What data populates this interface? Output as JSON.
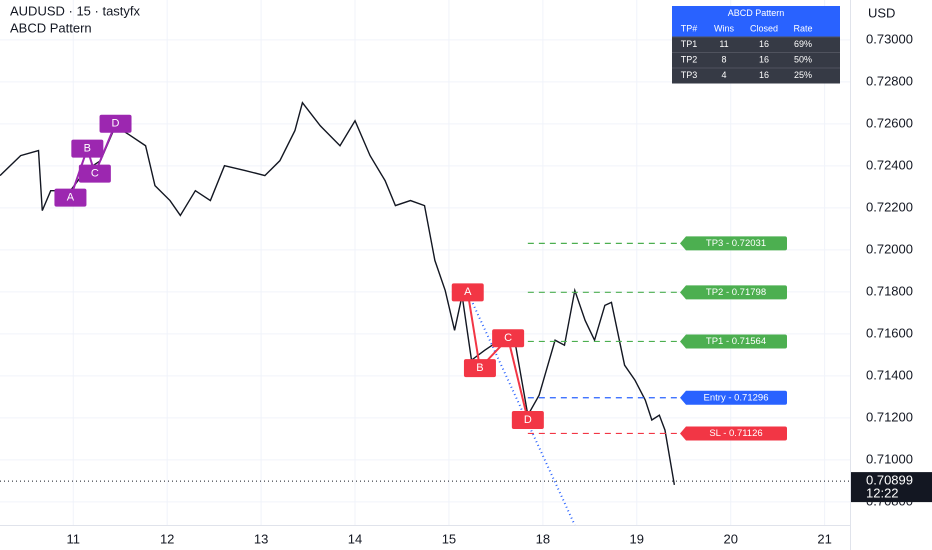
{
  "chart_data": {
    "type": "line",
    "title": "AUDUSD · 15 · tastyfx",
    "subtitle": "ABCD Pattern",
    "y_axis_label": "USD",
    "x": [
      -0.78,
      -0.56,
      -0.37,
      -0.33,
      -0.24,
      -0.03,
      0.13,
      0.29,
      0.45,
      0.61,
      0.77,
      0.87,
      1.03,
      1.14,
      1.3,
      1.46,
      1.61,
      1.83,
      2.04,
      2.2,
      2.36,
      2.44,
      2.63,
      2.84,
      3.0,
      3.16,
      3.32,
      3.43,
      3.59,
      3.74,
      3.85,
      3.96,
      4.06,
      4.14,
      4.24,
      4.38,
      4.54,
      4.7,
      4.84,
      4.96,
      5.13,
      5.23,
      5.34,
      5.45,
      5.55,
      5.66,
      5.73,
      5.87,
      5.98,
      6.09,
      6.16,
      6.24,
      6.3,
      6.4
    ],
    "series": [
      {
        "color": "#131722",
        "values": [
          0.72354,
          0.72449,
          0.72473,
          0.72187,
          0.72282,
          0.72282,
          0.72378,
          0.72425,
          0.72591,
          0.72544,
          0.72496,
          0.72306,
          0.72235,
          0.72164,
          0.72282,
          0.72235,
          0.72401,
          0.72378,
          0.72354,
          0.72425,
          0.72568,
          0.72701,
          0.72591,
          0.72496,
          0.72615,
          0.72449,
          0.7233,
          0.72211,
          0.72235,
          0.72211,
          0.7195,
          0.71807,
          0.71617,
          0.71783,
          0.71475,
          0.71522,
          0.7157,
          0.7157,
          0.71213,
          0.71308,
          0.7157,
          0.71546,
          0.71807,
          0.71664,
          0.7157,
          0.71736,
          0.7175,
          0.71451,
          0.7138,
          0.71285,
          0.7119,
          0.71213,
          0.71142,
          0.70881
        ]
      }
    ],
    "xlim": [
      -0.78,
      8.27
    ],
    "xticks": [
      {
        "value": 0,
        "label": "11"
      },
      {
        "value": 1,
        "label": "12"
      },
      {
        "value": 2,
        "label": "13"
      },
      {
        "value": 3,
        "label": "14"
      },
      {
        "value": 4,
        "label": "15"
      },
      {
        "value": 5,
        "label": "18"
      },
      {
        "value": 6,
        "label": "19"
      },
      {
        "value": 7,
        "label": "20"
      },
      {
        "value": 8,
        "label": "21"
      }
    ],
    "ylim": [
      0.7069,
      0.7319
    ],
    "yticks": [
      {
        "value": 0.708,
        "label": "0.70800"
      },
      {
        "value": 0.71,
        "label": "0.71000"
      },
      {
        "value": 0.712,
        "label": "0.71200"
      },
      {
        "value": 0.714,
        "label": "0.71400"
      },
      {
        "value": 0.716,
        "label": "0.71600"
      },
      {
        "value": 0.718,
        "label": "0.71800"
      },
      {
        "value": 0.72,
        "label": "0.72000"
      },
      {
        "value": 0.722,
        "label": "0.72200"
      },
      {
        "value": 0.724,
        "label": "0.72400"
      },
      {
        "value": 0.726,
        "label": "0.72600"
      },
      {
        "value": 0.728,
        "label": "0.72800"
      },
      {
        "value": 0.73,
        "label": "0.73000"
      }
    ],
    "levels": [
      {
        "label": "TP3  - 0.72031",
        "value": 0.72031,
        "color": "#4caf50"
      },
      {
        "label": "TP2  - 0.71798",
        "value": 0.71798,
        "color": "#4caf50"
      },
      {
        "label": "TP1  - 0.71564",
        "value": 0.71564,
        "color": "#4caf50"
      },
      {
        "label": "Entry - 0.71296",
        "value": 0.71296,
        "color": "#2962ff"
      },
      {
        "label": "SL  - 0.71126",
        "value": 0.71126,
        "color": "#f23645"
      }
    ],
    "last_price": {
      "value": 0.70899,
      "label": "0.70899",
      "time": "12:22"
    },
    "patterns": [
      {
        "color": "#9c27b0",
        "points": [
          {
            "label": "A",
            "x": -0.03,
            "y": 0.72249
          },
          {
            "label": "B",
            "x": 0.15,
            "y": 0.72482
          },
          {
            "label": "C",
            "x": 0.23,
            "y": 0.72363
          },
          {
            "label": "D",
            "x": 0.45,
            "y": 0.72601
          }
        ]
      },
      {
        "color": "#f23645",
        "points": [
          {
            "label": "A",
            "x": 4.2,
            "y": 0.71798
          },
          {
            "label": "B",
            "x": 4.33,
            "y": 0.71437
          },
          {
            "label": "C",
            "x": 4.63,
            "y": 0.71579
          },
          {
            "label": "D",
            "x": 4.84,
            "y": 0.7119
          }
        ]
      }
    ]
  },
  "table": {
    "title": "ABCD Pattern",
    "header": [
      "TP#",
      "Wins",
      "Closed",
      "Rate"
    ],
    "rows": [
      [
        "TP1",
        "11",
        "16",
        "69%"
      ],
      [
        "TP2",
        "8",
        "16",
        "50%"
      ],
      [
        "TP3",
        "4",
        "16",
        "25%"
      ]
    ]
  }
}
